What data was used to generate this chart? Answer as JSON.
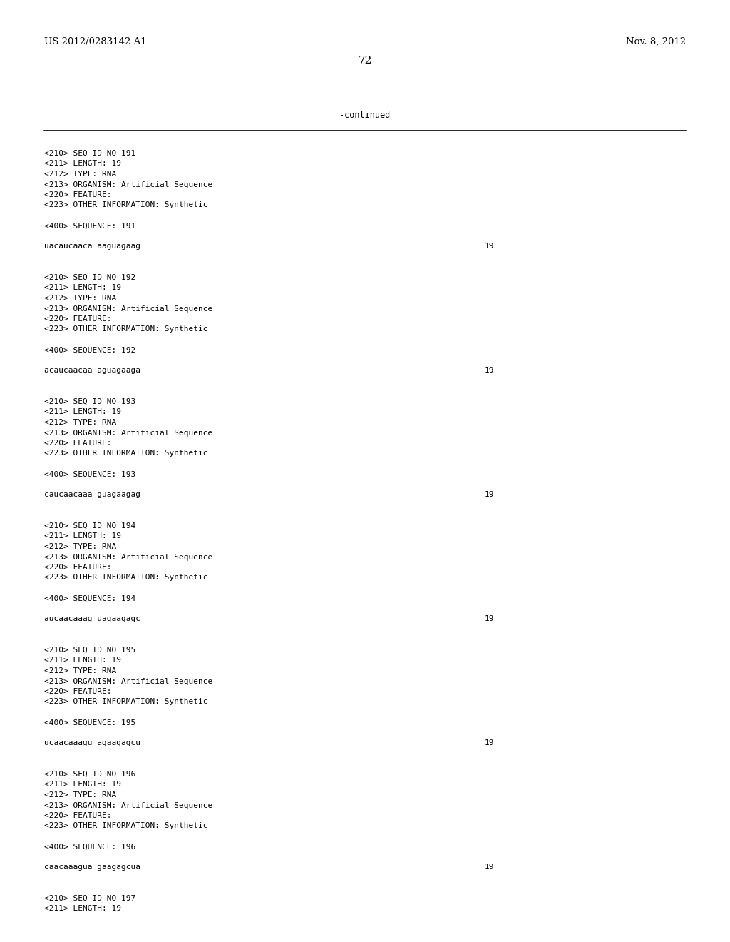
{
  "bg_color": "#ffffff",
  "top_left_text": "US 2012/0283142 A1",
  "top_right_text": "Nov. 8, 2012",
  "page_number": "72",
  "continued_text": "-continued",
  "blocks": [
    {
      "meta_lines": [
        "<210> SEQ ID NO 191",
        "<211> LENGTH: 19",
        "<212> TYPE: RNA",
        "<213> ORGANISM: Artificial Sequence",
        "<220> FEATURE:",
        "<223> OTHER INFORMATION: Synthetic"
      ],
      "seq_label": "<400> SEQUENCE: 191",
      "sequence": "uacaucaaca aaguagaag",
      "seq_num": "19"
    },
    {
      "meta_lines": [
        "<210> SEQ ID NO 192",
        "<211> LENGTH: 19",
        "<212> TYPE: RNA",
        "<213> ORGANISM: Artificial Sequence",
        "<220> FEATURE:",
        "<223> OTHER INFORMATION: Synthetic"
      ],
      "seq_label": "<400> SEQUENCE: 192",
      "sequence": "acaucaacaa aguagaaga",
      "seq_num": "19"
    },
    {
      "meta_lines": [
        "<210> SEQ ID NO 193",
        "<211> LENGTH: 19",
        "<212> TYPE: RNA",
        "<213> ORGANISM: Artificial Sequence",
        "<220> FEATURE:",
        "<223> OTHER INFORMATION: Synthetic"
      ],
      "seq_label": "<400> SEQUENCE: 193",
      "sequence": "caucaacaaa guagaagag",
      "seq_num": "19"
    },
    {
      "meta_lines": [
        "<210> SEQ ID NO 194",
        "<211> LENGTH: 19",
        "<212> TYPE: RNA",
        "<213> ORGANISM: Artificial Sequence",
        "<220> FEATURE:",
        "<223> OTHER INFORMATION: Synthetic"
      ],
      "seq_label": "<400> SEQUENCE: 194",
      "sequence": "aucaacaaag uagaagagc",
      "seq_num": "19"
    },
    {
      "meta_lines": [
        "<210> SEQ ID NO 195",
        "<211> LENGTH: 19",
        "<212> TYPE: RNA",
        "<213> ORGANISM: Artificial Sequence",
        "<220> FEATURE:",
        "<223> OTHER INFORMATION: Synthetic"
      ],
      "seq_label": "<400> SEQUENCE: 195",
      "sequence": "ucaacaaagu agaagagcu",
      "seq_num": "19"
    },
    {
      "meta_lines": [
        "<210> SEQ ID NO 196",
        "<211> LENGTH: 19",
        "<212> TYPE: RNA",
        "<213> ORGANISM: Artificial Sequence",
        "<220> FEATURE:",
        "<223> OTHER INFORMATION: Synthetic"
      ],
      "seq_label": "<400> SEQUENCE: 196",
      "sequence": "caacaaagua gaagagcua",
      "seq_num": "19"
    }
  ],
  "trailing_lines": [
    "<210> SEQ ID NO 197",
    "<211> LENGTH: 19"
  ],
  "meta_fontsize": 8.0,
  "seq_fontsize": 8.0,
  "header_fontsize": 9.5,
  "page_num_fontsize": 11
}
